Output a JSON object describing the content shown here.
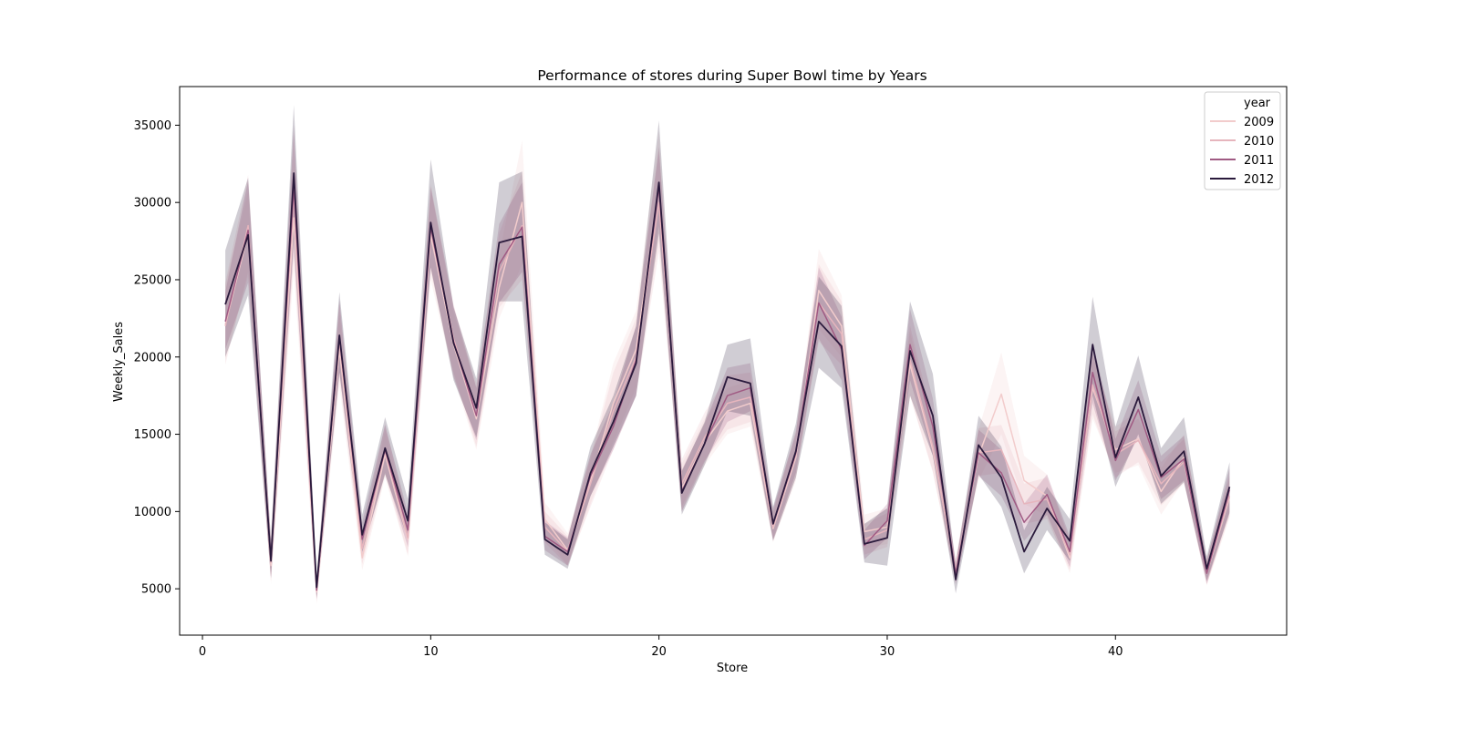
{
  "chart_data": {
    "type": "line",
    "title": "Performance of stores during Super Bowl time by Years",
    "xlabel": "Store",
    "ylabel": "Weekly_Sales",
    "xlim": [
      -1,
      47.5
    ],
    "ylim": [
      2000,
      37500
    ],
    "xticks": [
      0,
      10,
      20,
      30,
      40
    ],
    "yticks": [
      5000,
      10000,
      15000,
      20000,
      25000,
      30000,
      35000
    ],
    "grid": false,
    "legend": {
      "title": "year",
      "position": "top-right"
    },
    "x": [
      1,
      2,
      3,
      4,
      5,
      6,
      7,
      8,
      9,
      10,
      11,
      12,
      13,
      14,
      15,
      16,
      17,
      18,
      19,
      20,
      21,
      22,
      23,
      24,
      25,
      26,
      27,
      28,
      29,
      30,
      31,
      32,
      33,
      34,
      35,
      36,
      37,
      38,
      39,
      40,
      41,
      42,
      43,
      44,
      45
    ],
    "series": [
      {
        "name": "2009",
        "color": "#f2cccc",
        "values": [
          22100,
          28000,
          6500,
          29000,
          4800,
          20500,
          7000,
          13700,
          8200,
          27900,
          20800,
          16000,
          24500,
          30000,
          9500,
          7500,
          12000,
          17000,
          20500,
          31000,
          11500,
          14500,
          16500,
          17000,
          8900,
          13500,
          24300,
          22000,
          8700,
          9000,
          19500,
          14000,
          6200,
          13600,
          17600,
          12000,
          11000,
          7000,
          18000,
          14000,
          14700,
          11300,
          13500,
          6000,
          10900
        ],
        "band": [
          [
            19800,
            24700
          ],
          [
            25200,
            30700
          ],
          [
            5300,
            7900
          ],
          [
            25600,
            32500
          ],
          [
            4000,
            5700
          ],
          [
            18200,
            22800
          ],
          [
            6200,
            7900
          ],
          [
            12200,
            15300
          ],
          [
            7100,
            9400
          ],
          [
            25000,
            30900
          ],
          [
            18700,
            22900
          ],
          [
            14000,
            18000
          ],
          [
            22500,
            26600
          ],
          [
            26000,
            34000
          ],
          [
            8500,
            10600
          ],
          [
            6500,
            8600
          ],
          [
            10500,
            13600
          ],
          [
            14500,
            19600
          ],
          [
            18000,
            23000
          ],
          [
            27500,
            34600
          ],
          [
            10000,
            13100
          ],
          [
            13000,
            16000
          ],
          [
            15000,
            18000
          ],
          [
            15500,
            18500
          ],
          [
            8000,
            9900
          ],
          [
            12000,
            15000
          ],
          [
            21800,
            27000
          ],
          [
            20000,
            24000
          ],
          [
            7600,
            9800
          ],
          [
            7900,
            10200
          ],
          [
            17500,
            21600
          ],
          [
            12500,
            15600
          ],
          [
            5500,
            7000
          ],
          [
            12000,
            15300
          ],
          [
            15000,
            20300
          ],
          [
            10500,
            13600
          ],
          [
            9700,
            12400
          ],
          [
            6000,
            8000
          ],
          [
            16000,
            20100
          ],
          [
            12500,
            15500
          ],
          [
            13000,
            16500
          ],
          [
            9800,
            12800
          ],
          [
            12000,
            15000
          ],
          [
            5200,
            6900
          ],
          [
            9600,
            12200
          ]
        ]
      },
      {
        "name": "2010",
        "color": "#e6b5bd",
        "values": [
          22000,
          28500,
          6700,
          30500,
          4900,
          21000,
          7600,
          14000,
          8300,
          28300,
          21200,
          16200,
          25500,
          28500,
          9000,
          7400,
          11800,
          16500,
          20000,
          30000,
          11800,
          14800,
          17000,
          17400,
          9000,
          13700,
          23500,
          21500,
          8200,
          8800,
          19800,
          14200,
          6000,
          13800,
          14000,
          10500,
          10800,
          7200,
          18200,
          13700,
          14600,
          11800,
          13200,
          6100,
          11000
        ],
        "band": [
          [
            19500,
            24800
          ],
          [
            25500,
            31800
          ],
          [
            5500,
            8000
          ],
          [
            26500,
            34500
          ],
          [
            4200,
            5700
          ],
          [
            18700,
            23500
          ],
          [
            6600,
            8600
          ],
          [
            12400,
            15700
          ],
          [
            7200,
            9500
          ],
          [
            25500,
            31200
          ],
          [
            19000,
            23400
          ],
          [
            14200,
            18300
          ],
          [
            23200,
            28000
          ],
          [
            25000,
            32000
          ],
          [
            8000,
            10000
          ],
          [
            6500,
            8400
          ],
          [
            10300,
            13400
          ],
          [
            14000,
            19000
          ],
          [
            17500,
            22500
          ],
          [
            26800,
            33300
          ],
          [
            10300,
            13400
          ],
          [
            13300,
            16400
          ],
          [
            15300,
            18800
          ],
          [
            15800,
            19000
          ],
          [
            8100,
            10000
          ],
          [
            12200,
            15300
          ],
          [
            21000,
            26000
          ],
          [
            19500,
            23600
          ],
          [
            7200,
            9200
          ],
          [
            7700,
            9900
          ],
          [
            17500,
            22000
          ],
          [
            12600,
            15900
          ],
          [
            5300,
            6800
          ],
          [
            12300,
            15400
          ],
          [
            12500,
            15600
          ],
          [
            9200,
            11800
          ],
          [
            9500,
            12200
          ],
          [
            6200,
            8200
          ],
          [
            16300,
            20200
          ],
          [
            12200,
            15200
          ],
          [
            13200,
            16000
          ],
          [
            10400,
            13200
          ],
          [
            11800,
            14700
          ],
          [
            5300,
            6900
          ],
          [
            9700,
            12300
          ]
        ]
      },
      {
        "name": "2011",
        "color": "#a05a83",
        "values": [
          22300,
          28200,
          6900,
          31000,
          4900,
          21300,
          8200,
          14000,
          8800,
          28400,
          21000,
          16200,
          26000,
          28400,
          8400,
          7400,
          12300,
          15500,
          19800,
          31000,
          11300,
          14400,
          17500,
          18000,
          9200,
          13800,
          23500,
          20500,
          7800,
          9400,
          20800,
          15500,
          6000,
          13800,
          12500,
          9300,
          11100,
          7400,
          19000,
          13300,
          16600,
          12200,
          13400,
          6000,
          11400
        ],
        "band": [
          [
            20500,
            24200
          ],
          [
            24800,
            31400
          ],
          [
            5700,
            8200
          ],
          [
            27000,
            35000
          ],
          [
            4300,
            5600
          ],
          [
            19000,
            23700
          ],
          [
            7200,
            9300
          ],
          [
            12500,
            15600
          ],
          [
            7700,
            9900
          ],
          [
            25800,
            31000
          ],
          [
            18700,
            23300
          ],
          [
            14600,
            18000
          ],
          [
            23500,
            28600
          ],
          [
            25500,
            31300
          ],
          [
            7500,
            9400
          ],
          [
            6500,
            8300
          ],
          [
            11000,
            13700
          ],
          [
            14000,
            17000
          ],
          [
            17500,
            22000
          ],
          [
            28500,
            33600
          ],
          [
            10000,
            12700
          ],
          [
            13200,
            15700
          ],
          [
            15800,
            19300
          ],
          [
            16500,
            19600
          ],
          [
            8200,
            10200
          ],
          [
            12500,
            15100
          ],
          [
            21200,
            25800
          ],
          [
            18500,
            22600
          ],
          [
            6900,
            8800
          ],
          [
            8300,
            10500
          ],
          [
            18500,
            23100
          ],
          [
            13600,
            17300
          ],
          [
            5300,
            6700
          ],
          [
            12300,
            15300
          ],
          [
            11000,
            14000
          ],
          [
            8100,
            10500
          ],
          [
            9800,
            12400
          ],
          [
            6400,
            8400
          ],
          [
            17000,
            21000
          ],
          [
            12000,
            14700
          ],
          [
            14800,
            18500
          ],
          [
            10800,
            13600
          ],
          [
            12000,
            14900
          ],
          [
            5300,
            6800
          ],
          [
            10000,
            12800
          ]
        ]
      },
      {
        "name": "2012",
        "color": "#2a1a3c",
        "values": [
          23400,
          27900,
          6800,
          31900,
          5100,
          21400,
          8500,
          14100,
          9400,
          28700,
          20900,
          16700,
          27400,
          27800,
          8200,
          7200,
          12500,
          15800,
          19600,
          31300,
          11200,
          14400,
          18700,
          18300,
          9200,
          13900,
          22300,
          20700,
          7900,
          8300,
          20400,
          16200,
          5600,
          14300,
          12200,
          7400,
          10200,
          8100,
          20800,
          13500,
          17400,
          12300,
          13900,
          6300,
          11600
        ],
        "band": [
          [
            20000,
            26900
          ],
          [
            24000,
            31600
          ],
          [
            5700,
            8200
          ],
          [
            27700,
            36300
          ],
          [
            4400,
            5800
          ],
          [
            19000,
            24200
          ],
          [
            7400,
            9800
          ],
          [
            12400,
            16100
          ],
          [
            8200,
            10800
          ],
          [
            25800,
            32800
          ],
          [
            18500,
            23200
          ],
          [
            14800,
            18600
          ],
          [
            23600,
            31300
          ],
          [
            23600,
            32000
          ],
          [
            7200,
            9300
          ],
          [
            6300,
            8200
          ],
          [
            11000,
            14200
          ],
          [
            14200,
            17500
          ],
          [
            17500,
            22000
          ],
          [
            28000,
            35300
          ],
          [
            9800,
            12600
          ],
          [
            13000,
            15800
          ],
          [
            16500,
            20800
          ],
          [
            16200,
            21200
          ],
          [
            8100,
            10300
          ],
          [
            12200,
            15700
          ],
          [
            19300,
            25200
          ],
          [
            18000,
            23300
          ],
          [
            6700,
            9200
          ],
          [
            6500,
            10200
          ],
          [
            17500,
            23600
          ],
          [
            13600,
            18900
          ],
          [
            4700,
            6500
          ],
          [
            12400,
            16200
          ],
          [
            10300,
            14200
          ],
          [
            6000,
            8800
          ],
          [
            8800,
            11600
          ],
          [
            6800,
            9500
          ],
          [
            17500,
            23900
          ],
          [
            11600,
            15500
          ],
          [
            15000,
            20100
          ],
          [
            10500,
            14100
          ],
          [
            11900,
            16100
          ],
          [
            5500,
            7100
          ],
          [
            9900,
            13200
          ]
        ]
      }
    ]
  }
}
